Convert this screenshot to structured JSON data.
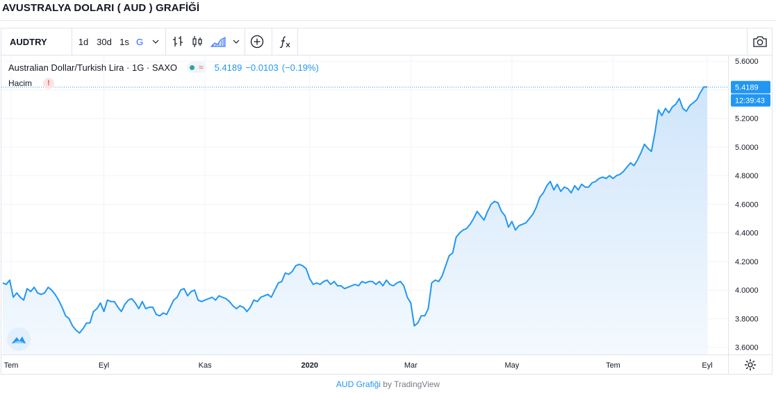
{
  "page": {
    "title": "AVUSTRALYA DOLARI ( AUD ) GRAFİĞİ"
  },
  "toolbar": {
    "symbol": "AUDTRY",
    "intervals": [
      "1d",
      "30d",
      "1s",
      "G"
    ],
    "active_interval": "G",
    "icons": [
      "chevron-down-icon",
      "bar-chart-icon",
      "candles-icon",
      "area-chart-icon",
      "add-compare-icon",
      "indicators-icon",
      "camera-icon"
    ]
  },
  "legend": {
    "symbol_desc": "Australian Dollar/Turkish Lira · 1G · SAXO",
    "status_wave": "≈",
    "last": "5.4189",
    "change": "−0.0103",
    "change_pct": "(−0.19%)"
  },
  "volume": {
    "label": "Hacim",
    "warning": "!"
  },
  "last_price_label": {
    "price": "5.4189",
    "countdown": "12:39:43"
  },
  "footer": {
    "link": "AUD Grafiği",
    "by": "by TradingView"
  },
  "colors": {
    "line": "#2196f3",
    "fill_top": "#cfe5fb",
    "fill_bottom": "#f4f9fe",
    "grid": "#f0f3fa",
    "price_label": "#2196f3"
  },
  "chart_data": {
    "type": "area",
    "x_ticks": [
      "Tem",
      "Eyl",
      "Kas",
      "2020",
      "Mar",
      "May",
      "Tem",
      "Eyl"
    ],
    "y_ticks": [
      "5.6000",
      "5.4000",
      "5.2000",
      "5.0000",
      "4.8000",
      "4.6000",
      "4.4000",
      "4.2000",
      "4.0000",
      "3.8000",
      "3.6000"
    ],
    "ylim": [
      3.55,
      5.64
    ],
    "grid": true,
    "series": [
      {
        "values": [
          4.05,
          4.04,
          4.07,
          3.95,
          3.98,
          3.95,
          3.93,
          4.01,
          3.99,
          4.02,
          3.98,
          3.97,
          3.98,
          4.02,
          4.0,
          3.97,
          3.93,
          3.88,
          3.82,
          3.8,
          3.75,
          3.72,
          3.7,
          3.73,
          3.77,
          3.77,
          3.85,
          3.87,
          3.91,
          3.85,
          3.93,
          3.92,
          3.92,
          3.88,
          3.85,
          3.9,
          3.93,
          3.94,
          3.91,
          3.87,
          3.92,
          3.87,
          3.88,
          3.88,
          3.83,
          3.82,
          3.84,
          3.83,
          3.88,
          3.93,
          3.95,
          4.0,
          4.01,
          3.96,
          3.99,
          4.0,
          3.93,
          3.92,
          3.93,
          3.94,
          3.95,
          3.93,
          3.96,
          3.95,
          3.94,
          3.92,
          3.89,
          3.87,
          3.89,
          3.88,
          3.85,
          3.88,
          3.93,
          3.92,
          3.95,
          3.96,
          3.97,
          3.95,
          4.0,
          4.05,
          4.06,
          4.12,
          4.11,
          4.13,
          4.17,
          4.18,
          4.17,
          4.15,
          4.08,
          4.04,
          4.05,
          4.04,
          4.06,
          4.07,
          4.04,
          4.06,
          4.03,
          4.03,
          4.01,
          4.02,
          4.03,
          4.04,
          4.03,
          4.06,
          4.05,
          4.06,
          4.06,
          4.04,
          4.06,
          4.03,
          4.07,
          4.04,
          4.03,
          4.05,
          4.06,
          4.03,
          3.95,
          3.91,
          3.75,
          3.77,
          3.82,
          3.82,
          3.87,
          4.05,
          4.07,
          4.06,
          4.1,
          4.17,
          4.24,
          4.26,
          4.37,
          4.4,
          4.42,
          4.43,
          4.46,
          4.5,
          4.55,
          4.52,
          4.49,
          4.55,
          4.6,
          4.62,
          4.61,
          4.55,
          4.52,
          4.44,
          4.48,
          4.42,
          4.45,
          4.46,
          4.47,
          4.5,
          4.53,
          4.58,
          4.65,
          4.68,
          4.73,
          4.76,
          4.7,
          4.74,
          4.69,
          4.72,
          4.71,
          4.68,
          4.73,
          4.7,
          4.74,
          4.72,
          4.72,
          4.75,
          4.76,
          4.78,
          4.79,
          4.78,
          4.8,
          4.78,
          4.8,
          4.81,
          4.83,
          4.86,
          4.89,
          4.87,
          4.91,
          4.96,
          5.02,
          4.99,
          4.97,
          5.1,
          5.26,
          5.22,
          5.27,
          5.24,
          5.28,
          5.3,
          5.34,
          5.27,
          5.25,
          5.29,
          5.31,
          5.33,
          5.38,
          5.42,
          5.42
        ]
      }
    ]
  }
}
